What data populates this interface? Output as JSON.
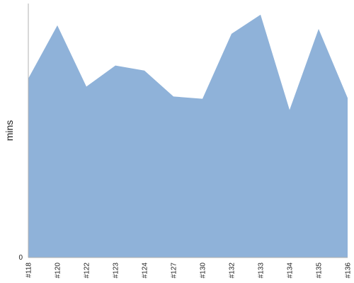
{
  "chart_data": {
    "type": "area",
    "title": "",
    "xlabel": "",
    "ylabel": "mins",
    "categories": [
      "#118",
      "#120",
      "#122",
      "#123",
      "#124",
      "#127",
      "#130",
      "#132",
      "#133",
      "#134",
      "#135",
      "#136"
    ],
    "series": [
      {
        "values": [
          70.5,
          91.4,
          67.3,
          75.6,
          73.6,
          63.4,
          62.5,
          88.1,
          95.6,
          58.1,
          90.0,
          62.8
        ]
      }
    ],
    "y_tick_labels": [
      "0"
    ],
    "ylim": [
      0,
      100
    ],
    "grid": false,
    "legend": "none",
    "colors": {
      "fill": "#8fb2d9",
      "axis": "#b0b0b0",
      "text": "#222222"
    }
  }
}
